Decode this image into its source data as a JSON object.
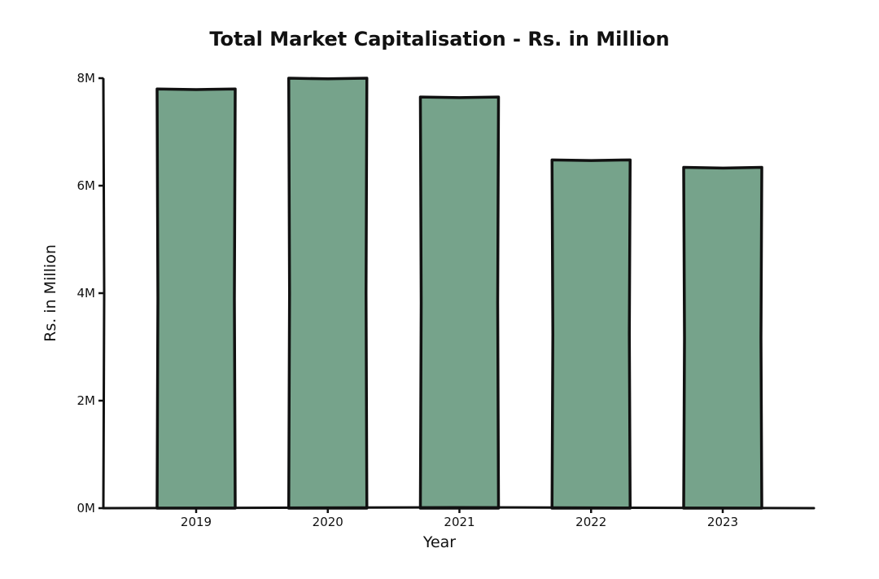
{
  "chart_data": {
    "type": "bar",
    "title": "Total Market Capitalisation - Rs. in Million",
    "xlabel": "Year",
    "ylabel": "Rs. in Million",
    "categories": [
      "2019",
      "2020",
      "2021",
      "2022",
      "2023"
    ],
    "values": [
      7.8,
      8.0,
      7.65,
      6.48,
      6.34
    ],
    "value_unit": "M",
    "ylim": [
      0,
      8
    ],
    "yticks": [
      0,
      2,
      4,
      6,
      8
    ],
    "ytick_labels": [
      "0M",
      "2M",
      "4M",
      "6M",
      "8M"
    ],
    "grid": false,
    "legend": "none",
    "bar_color": "#76a38b",
    "edge_color": "#111111"
  }
}
